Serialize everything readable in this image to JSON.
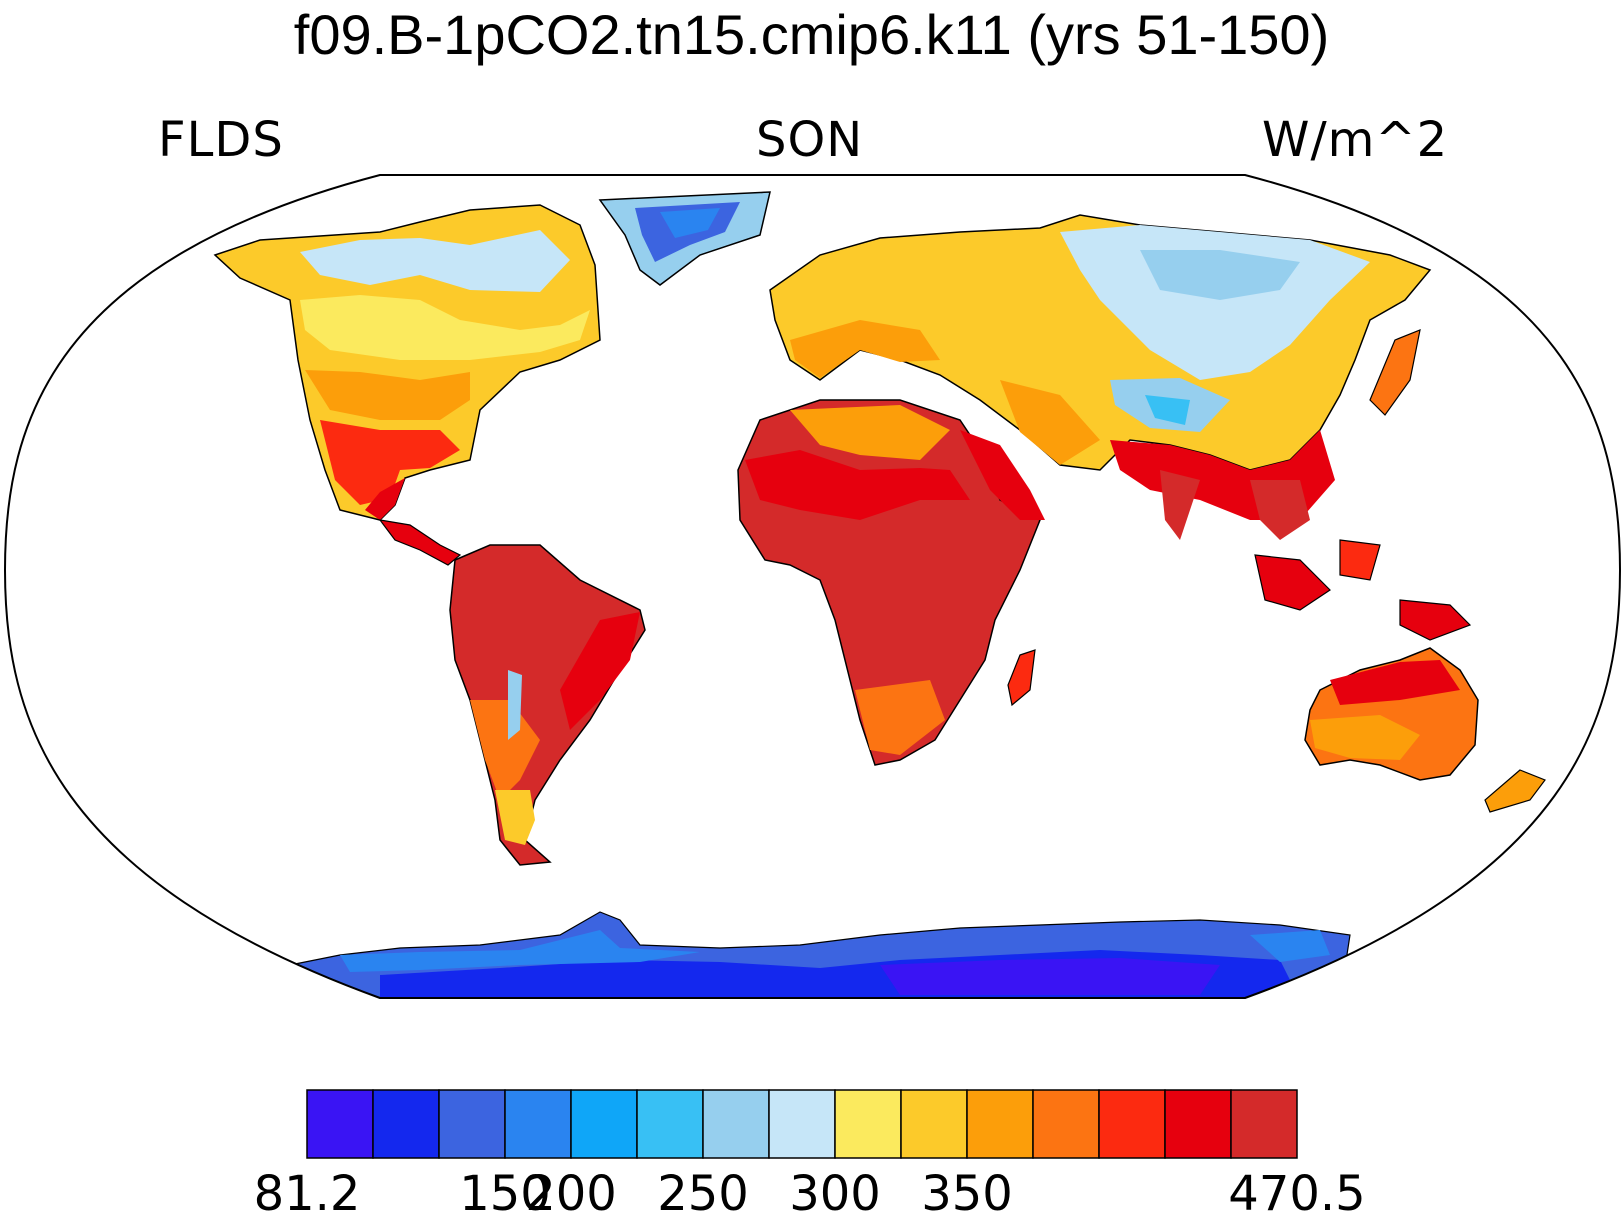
{
  "title": "f09.B-1pCO2.tn15.cmip6.k11 (yrs 51-150)",
  "variable": "FLDS",
  "season": "SON",
  "units": "W/m^2",
  "colorbar": {
    "colors": [
      "#3a14f4",
      "#1428ee",
      "#3c64e0",
      "#2a84f0",
      "#0fa6f8",
      "#38c0f4",
      "#96cfee",
      "#c6e6f8",
      "#fbea5e",
      "#fcca2a",
      "#fc9e0a",
      "#fc7412",
      "#fc2a10",
      "#e6000e",
      "#d42a2a"
    ],
    "labels": [
      "81.2",
      "150",
      "200",
      "250",
      "300",
      "350",
      "470.5"
    ]
  }
}
